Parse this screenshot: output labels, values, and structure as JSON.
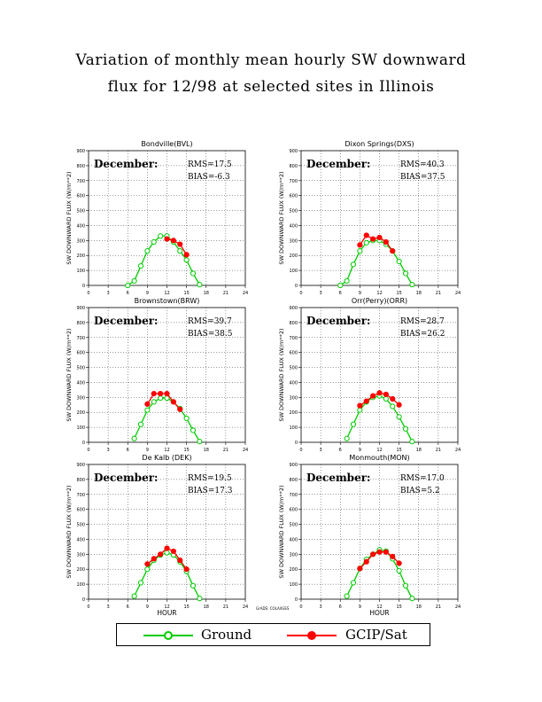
{
  "title": {
    "line1": "Variation of monthly mean hourly SW downward",
    "line2": "flux for 12/98 at selected sites in Illinois"
  },
  "credit": "GrADS: COLA/IGES",
  "axes": {
    "ylabel": "SW DOWNWARD FLUX (W/m**2)",
    "xlabel": "HOUR",
    "xticks": [
      "0",
      "3",
      "6",
      "9",
      "12",
      "15",
      "18",
      "21",
      "24"
    ],
    "yticks": [
      "0",
      "100",
      "200",
      "300",
      "400",
      "500",
      "600",
      "700",
      "800",
      "900"
    ]
  },
  "colors": {
    "ground": "#00cc00",
    "gcip": "#ff0000",
    "grid": "#000000"
  },
  "legend": {
    "ground_label": "Ground",
    "gcip_label": "GCIP/Sat"
  },
  "chart_data": [
    {
      "type": "line",
      "title": "Bondville(BVL)",
      "annotation_month": "December:",
      "rms": "RMS=17.5",
      "bias": "BIAS=-6.3",
      "xlabel": "",
      "ylabel": "SW DOWNWARD FLUX (W/m**2)",
      "xlim": [
        0,
        24
      ],
      "ylim": [
        0,
        900
      ],
      "grid": true,
      "series": [
        {
          "name": "Ground",
          "x": [
            6,
            7,
            8,
            9,
            10,
            11,
            12,
            13,
            14,
            15,
            16,
            17
          ],
          "values": [
            0,
            30,
            130,
            230,
            290,
            330,
            330,
            290,
            230,
            170,
            80,
            5
          ]
        },
        {
          "name": "GCIP/Sat",
          "x": [
            12,
            13,
            14,
            15
          ],
          "values": [
            310,
            300,
            275,
            205
          ]
        }
      ]
    },
    {
      "type": "line",
      "title": "Dixon Springs(DXS)",
      "annotation_month": "December:",
      "rms": "RMS=40.3",
      "bias": "BIAS=37.5",
      "xlabel": "",
      "ylabel": "SW DOWNWARD FLUX (W/m**2)",
      "xlim": [
        0,
        24
      ],
      "ylim": [
        0,
        900
      ],
      "grid": true,
      "series": [
        {
          "name": "Ground",
          "x": [
            6,
            7,
            8,
            9,
            10,
            11,
            12,
            13,
            14,
            15,
            16,
            17
          ],
          "values": [
            0,
            30,
            140,
            230,
            285,
            300,
            300,
            275,
            230,
            160,
            80,
            5
          ]
        },
        {
          "name": "GCIP/Sat",
          "x": [
            9,
            10,
            11,
            12,
            13,
            14
          ],
          "values": [
            270,
            335,
            310,
            320,
            290,
            230
          ]
        }
      ]
    },
    {
      "type": "line",
      "title": "Brownstown(BRW)",
      "annotation_month": "December:",
      "rms": "RMS=39.7",
      "bias": "BIAS=38.5",
      "xlabel": "",
      "ylabel": "SW DOWNWARD FLUX (W/m**2)",
      "xlim": [
        0,
        24
      ],
      "ylim": [
        0,
        900
      ],
      "grid": true,
      "series": [
        {
          "name": "Ground",
          "x": [
            7,
            8,
            9,
            10,
            11,
            12,
            13,
            14,
            15,
            16,
            17
          ],
          "values": [
            25,
            120,
            215,
            270,
            295,
            295,
            270,
            225,
            160,
            80,
            5
          ]
        },
        {
          "name": "GCIP/Sat",
          "x": [
            9,
            10,
            11,
            12,
            13,
            14
          ],
          "values": [
            255,
            325,
            325,
            325,
            270,
            220
          ]
        }
      ]
    },
    {
      "type": "line",
      "title": "Orr(Perry)(ORR)",
      "annotation_month": "December:",
      "rms": "RMS=28.7",
      "bias": "BIAS=26.2",
      "xlabel": "",
      "ylabel": "SW DOWNWARD FLUX (W/m**2)",
      "xlim": [
        0,
        24
      ],
      "ylim": [
        0,
        900
      ],
      "grid": true,
      "series": [
        {
          "name": "Ground",
          "x": [
            7,
            8,
            9,
            10,
            11,
            12,
            13,
            14,
            15,
            16,
            17
          ],
          "values": [
            25,
            120,
            215,
            270,
            300,
            310,
            290,
            240,
            170,
            90,
            5
          ]
        },
        {
          "name": "GCIP/Sat",
          "x": [
            9,
            10,
            11,
            12,
            13,
            14,
            15
          ],
          "values": [
            245,
            275,
            310,
            330,
            320,
            290,
            250
          ]
        }
      ]
    },
    {
      "type": "line",
      "title": "De Kalb (DEK)",
      "annotation_month": "December:",
      "rms": "RMS=19.5",
      "bias": "BIAS=17.3",
      "xlabel": "HOUR",
      "ylabel": "SW DOWNWARD FLUX (W/m**2)",
      "xlim": [
        0,
        24
      ],
      "ylim": [
        0,
        900
      ],
      "grid": true,
      "series": [
        {
          "name": "Ground",
          "x": [
            7,
            8,
            9,
            10,
            11,
            12,
            13,
            14,
            15,
            16,
            17
          ],
          "values": [
            20,
            110,
            200,
            260,
            295,
            310,
            295,
            250,
            185,
            90,
            5
          ]
        },
        {
          "name": "GCIP/Sat",
          "x": [
            9,
            10,
            11,
            12,
            13,
            14,
            15
          ],
          "values": [
            235,
            270,
            300,
            340,
            320,
            260,
            200
          ]
        }
      ]
    },
    {
      "type": "line",
      "title": "Monmouth(MON)",
      "annotation_month": "December:",
      "rms": "RMS=17.0",
      "bias": "BIAS=5.2",
      "xlabel": "HOUR",
      "ylabel": "SW DOWNWARD FLUX (W/m**2)",
      "xlim": [
        0,
        24
      ],
      "ylim": [
        0,
        900
      ],
      "grid": true,
      "series": [
        {
          "name": "Ground",
          "x": [
            7,
            8,
            9,
            10,
            11,
            12,
            13,
            14,
            15,
            16,
            17
          ],
          "values": [
            20,
            110,
            205,
            265,
            300,
            330,
            320,
            270,
            190,
            90,
            5
          ]
        },
        {
          "name": "GCIP/Sat",
          "x": [
            9,
            10,
            11,
            12,
            13,
            14,
            15
          ],
          "values": [
            205,
            250,
            300,
            315,
            315,
            285,
            240
          ]
        }
      ]
    }
  ]
}
